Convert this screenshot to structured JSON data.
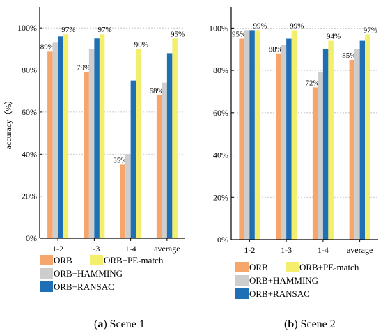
{
  "legend": [
    "ORB",
    "ORB+HAMMING",
    "ORB+RANSAC",
    "ORB+PE-match"
  ],
  "colors": [
    "#f6a56b",
    "#cdcdcd",
    "#1f6fb4",
    "#f3ef6d"
  ],
  "chart_data": [
    {
      "type": "bar",
      "caption_letter": "a",
      "caption_text": "Scene 1",
      "ylabel": "accuracy（%）",
      "ylim": [
        0,
        110
      ],
      "yticks": [
        0,
        20,
        40,
        60,
        80,
        100
      ],
      "ytick_labels": [
        "0%",
        "20%",
        "40%",
        "60%",
        "80%",
        "100%"
      ],
      "grid": true,
      "categories": [
        "1-2",
        "1-3",
        "1-4",
        "average"
      ],
      "series": [
        {
          "name": "ORB",
          "values": [
            89,
            79,
            35,
            68
          ],
          "labels": [
            "89%",
            "79%",
            "35%",
            "68%"
          ]
        },
        {
          "name": "ORB+HAMMING",
          "values": [
            93,
            90,
            40,
            74
          ],
          "labels": [
            "",
            "",
            "",
            ""
          ]
        },
        {
          "name": "ORB+RANSAC",
          "values": [
            96,
            95,
            75,
            88
          ],
          "labels": [
            "",
            "",
            "",
            ""
          ]
        },
        {
          "name": "ORB+PE-match",
          "values": [
            97,
            97,
            90,
            95
          ],
          "labels": [
            "97%",
            "97%",
            "90%",
            "95%"
          ]
        }
      ]
    },
    {
      "type": "bar",
      "caption_letter": "b",
      "caption_text": "Scene 2",
      "ylabel": "",
      "ylim": [
        0,
        110
      ],
      "yticks": [
        0,
        20,
        40,
        60,
        80,
        100
      ],
      "ytick_labels": [
        "0%",
        "20%",
        "40%",
        "60%",
        "80%",
        "100%"
      ],
      "grid": true,
      "categories": [
        "1-2",
        "1-3",
        "1-4",
        "average"
      ],
      "series": [
        {
          "name": "ORB",
          "values": [
            95,
            88,
            72,
            85
          ],
          "labels": [
            "95%",
            "88%",
            "72%",
            "85%"
          ]
        },
        {
          "name": "ORB+HAMMING",
          "values": [
            99,
            92,
            79,
            90
          ],
          "labels": [
            "",
            "",
            "",
            ""
          ]
        },
        {
          "name": "ORB+RANSAC",
          "values": [
            99,
            95,
            90,
            94
          ],
          "labels": [
            "",
            "",
            "",
            ""
          ]
        },
        {
          "name": "ORB+PE-match",
          "values": [
            99,
            99,
            94,
            97
          ],
          "labels": [
            "99%",
            "99%",
            "94%",
            "97%"
          ]
        }
      ]
    }
  ]
}
